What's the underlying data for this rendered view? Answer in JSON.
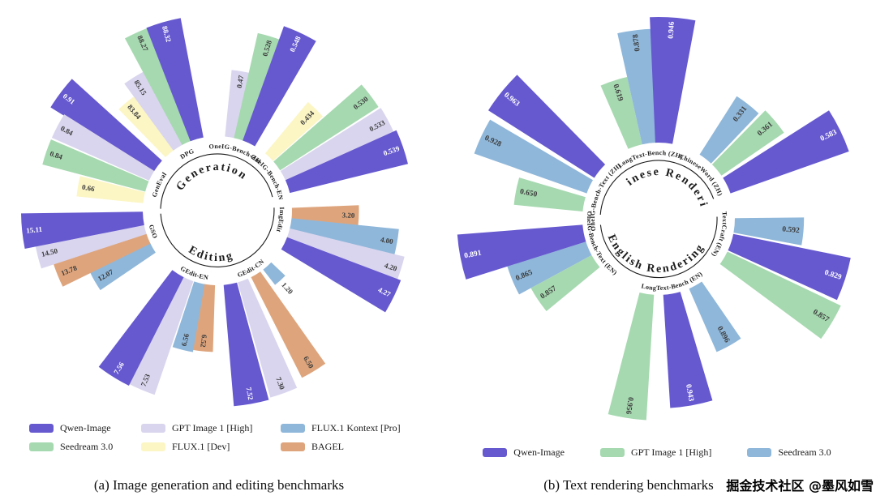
{
  "captions": {
    "a": "(a) Image generation and editing benchmarks",
    "b": "(b) Text rendering benchmarks"
  },
  "watermark": {
    "text": "掘金技术社区 @墨风如雪"
  },
  "chart_data": [
    {
      "type": "radial_bar",
      "caption": "(a) Image generation and editing benchmarks",
      "normalization": "bar lengths normalized within each benchmark group",
      "sections": [
        {
          "title": "Generation",
          "title_angle": 350,
          "arc_start": 272,
          "arc_end": 436
        },
        {
          "title": "Editing",
          "title_angle": 188,
          "arc_start": 87,
          "arc_end": 267
        }
      ],
      "legend": [
        {
          "label": "Qwen-Image",
          "color": "#6659cf"
        },
        {
          "label": "GPT Image 1 [High]",
          "color": "#d9d5ee"
        },
        {
          "label": "FLUX.1 Kontext [Pro]",
          "color": "#8fb7da"
        },
        {
          "label": "Seedream 3.0",
          "color": "#a6d9b0"
        },
        {
          "label": "FLUX.1 [Dev]",
          "color": "#fcf6c5"
        },
        {
          "label": "BAGEL",
          "color": "#dea57d"
        }
      ],
      "groups": [
        {
          "benchmark": "GenEval",
          "label_angle": 294,
          "bars": [
            {
              "model": "Qwen-Image",
              "value": 0.91,
              "label": "0.91",
              "angle": 307
            },
            {
              "model": "GPT Image 1 [High]",
              "value": 0.84,
              "label": "0.84",
              "angle": 298
            },
            {
              "model": "Seedream 3.0",
              "value": 0.84,
              "label": "0.84",
              "angle": 289
            },
            {
              "model": "FLUX.1 [Dev]",
              "value": 0.66,
              "label": "0.66",
              "angle": 280
            }
          ]
        },
        {
          "benchmark": "DPG",
          "label_angle": 332,
          "bars": [
            {
              "model": "FLUX.1 [Dev]",
              "value": 83.84,
              "label": "83.84",
              "angle": 320
            },
            {
              "model": "GPT Image 1 [High]",
              "value": 85.15,
              "label": "85.15",
              "angle": 328
            },
            {
              "model": "Seedream 3.0",
              "value": 88.27,
              "label": "88.27",
              "angle": 336
            },
            {
              "model": "Qwen-Image",
              "value": 88.32,
              "label": "88.32",
              "angle": 344
            }
          ]
        },
        {
          "benchmark": "OneIG-Bench-ZH",
          "label_angle": 17,
          "bars": [
            {
              "model": "GPT Image 1 [High]",
              "value": 0.47,
              "label": "0.47",
              "angle": 10
            },
            {
              "model": "Seedream 3.0",
              "value": 0.528,
              "label": "0.528",
              "angle": 17
            },
            {
              "model": "Qwen-Image",
              "value": 0.548,
              "label": "0.548",
              "angle": 25
            }
          ]
        },
        {
          "benchmark": "OneIG-Bench-EN",
          "label_angle": 56,
          "bars": [
            {
              "model": "FLUX.1 [Dev]",
              "value": 0.434,
              "label": "0.434",
              "angle": 44
            },
            {
              "model": "Seedream 3.0",
              "value": 0.53,
              "label": "0.530",
              "angle": 53
            },
            {
              "model": "GPT Image 1 [High]",
              "value": 0.533,
              "label": "0.533",
              "angle": 62
            },
            {
              "model": "Qwen-Image",
              "value": 0.539,
              "label": "0.539",
              "angle": 71
            }
          ]
        },
        {
          "benchmark": "ImgEdit",
          "label_angle": 98,
          "bars": [
            {
              "model": "BAGEL",
              "value": 3.2,
              "label": "3.20",
              "angle": 92
            },
            {
              "model": "FLUX.1 Kontext [Pro]",
              "value": 4.0,
              "label": "4.00",
              "angle": 100
            },
            {
              "model": "GPT Image 1 [High]",
              "value": 4.2,
              "label": "4.20",
              "angle": 108
            },
            {
              "model": "Qwen-Image",
              "value": 4.27,
              "label": "4.27",
              "angle": 116
            }
          ]
        },
        {
          "benchmark": "GEdit-CN",
          "label_angle": 150,
          "bars": [
            {
              "model": "FLUX.1 Kontext [Pro]",
              "value": 1.2,
              "label": "1.20",
              "angle": 138
            },
            {
              "model": "BAGEL",
              "value": 6.5,
              "label": "6.50",
              "angle": 149
            },
            {
              "model": "GPT Image 1 [High]",
              "value": 7.3,
              "label": "7.30",
              "angle": 160
            },
            {
              "model": "Qwen-Image",
              "value": 7.52,
              "label": "7.52",
              "angle": 170
            }
          ]
        },
        {
          "benchmark": "GEdit-EN",
          "label_angle": 200,
          "bars": [
            {
              "model": "BAGEL",
              "value": 6.52,
              "label": "6.52",
              "angle": 186
            },
            {
              "model": "FLUX.1 Kontext [Pro]",
              "value": 6.56,
              "label": "6.56",
              "angle": 194
            },
            {
              "model": "GPT Image 1 [High]",
              "value": 7.53,
              "label": "7.53",
              "angle": 203
            },
            {
              "model": "Qwen-Image",
              "value": 7.56,
              "label": "7.56",
              "angle": 212
            }
          ]
        },
        {
          "benchmark": "GSO",
          "label_angle": 252,
          "bars": [
            {
              "model": "FLUX.1 Kontext [Pro]",
              "value": 12.07,
              "label": "12.07",
              "angle": 240
            },
            {
              "model": "BAGEL",
              "value": 13.78,
              "label": "13.78",
              "angle": 248
            },
            {
              "model": "GPT Image 1 [High]",
              "value": 14.5,
              "label": "14.50",
              "angle": 256
            },
            {
              "model": "Qwen-Image",
              "value": 15.11,
              "label": "15.11",
              "angle": 264
            }
          ]
        }
      ]
    },
    {
      "type": "radial_bar",
      "caption": "(b) Text rendering benchmarks",
      "normalization": "bar lengths normalized within each benchmark group",
      "sections": [
        {
          "title": "Chinese Rendering",
          "title_angle": 16,
          "arc_start": 274,
          "arc_end": 430
        },
        {
          "title": "English Rendering",
          "title_angle": 186,
          "arc_start": 88,
          "arc_end": 264
        }
      ],
      "legend": [
        {
          "label": "Qwen-Image",
          "color": "#6659cf"
        },
        {
          "label": "GPT Image 1 [High]",
          "color": "#a6d9b0"
        },
        {
          "label": "Seedream 3.0",
          "color": "#8fb7da"
        }
      ],
      "groups": [
        {
          "benchmark": "OneIG-Bench-Text (ZH)",
          "label_angle": 292,
          "bars": [
            {
              "model": "GPT Image 1 [High]",
              "value": 0.65,
              "label": "0.650",
              "angle": 281
            },
            {
              "model": "Seedream 3.0",
              "value": 0.928,
              "label": "0.928",
              "angle": 295
            },
            {
              "model": "Qwen-Image",
              "value": 0.963,
              "label": "0.963",
              "angle": 309
            }
          ]
        },
        {
          "benchmark": "LongText-Bench (ZH)",
          "label_angle": 352,
          "bars": [
            {
              "model": "GPT Image 1 [High]",
              "value": 0.619,
              "label": "0.619",
              "angle": 342
            },
            {
              "model": "Seedream 3.0",
              "value": 0.878,
              "label": "0.878",
              "angle": 353
            },
            {
              "model": "Qwen-Image",
              "value": 0.946,
              "label": "0.946",
              "angle": 4
            }
          ]
        },
        {
          "benchmark": "ChineseWord (ZH)",
          "label_angle": 44,
          "bars": [
            {
              "model": "Seedream 3.0",
              "value": 0.331,
              "label": "0.331",
              "angle": 38
            },
            {
              "model": "GPT Image 1 [High]",
              "value": 0.361,
              "label": "0.361",
              "angle": 50
            },
            {
              "model": "Qwen-Image",
              "value": 0.583,
              "label": "0.583",
              "angle": 64
            }
          ]
        },
        {
          "benchmark": "TextCraft (EN)",
          "label_angle": 104,
          "bars": [
            {
              "model": "Seedream 3.0",
              "value": 0.592,
              "label": "0.592",
              "angle": 95
            },
            {
              "model": "Qwen-Image",
              "value": 0.829,
              "label": "0.829",
              "angle": 108
            },
            {
              "model": "GPT Image 1 [High]",
              "value": 0.857,
              "label": "0.857",
              "angle": 121
            }
          ]
        },
        {
          "benchmark": "LongText-Bench (EN)",
          "label_angle": 168,
          "bars": [
            {
              "model": "Seedream 3.0",
              "value": 0.896,
              "label": "0.896",
              "angle": 151
            },
            {
              "model": "Qwen-Image",
              "value": 0.943,
              "label": "0.943",
              "angle": 170
            },
            {
              "model": "GPT Image 1 [High]",
              "value": 0.956,
              "label": "0.956",
              "angle": 189
            }
          ]
        },
        {
          "benchmark": "OneIG-Bench-Text (EN)",
          "label_angle": 247,
          "bars": [
            {
              "model": "GPT Image 1 [High]",
              "value": 0.857,
              "label": "0.857",
              "angle": 236
            },
            {
              "model": "Seedream 3.0",
              "value": 0.865,
              "label": "0.865",
              "angle": 247
            },
            {
              "model": "Qwen-Image",
              "value": 0.891,
              "label": "0.891",
              "angle": 259
            }
          ]
        }
      ]
    }
  ]
}
